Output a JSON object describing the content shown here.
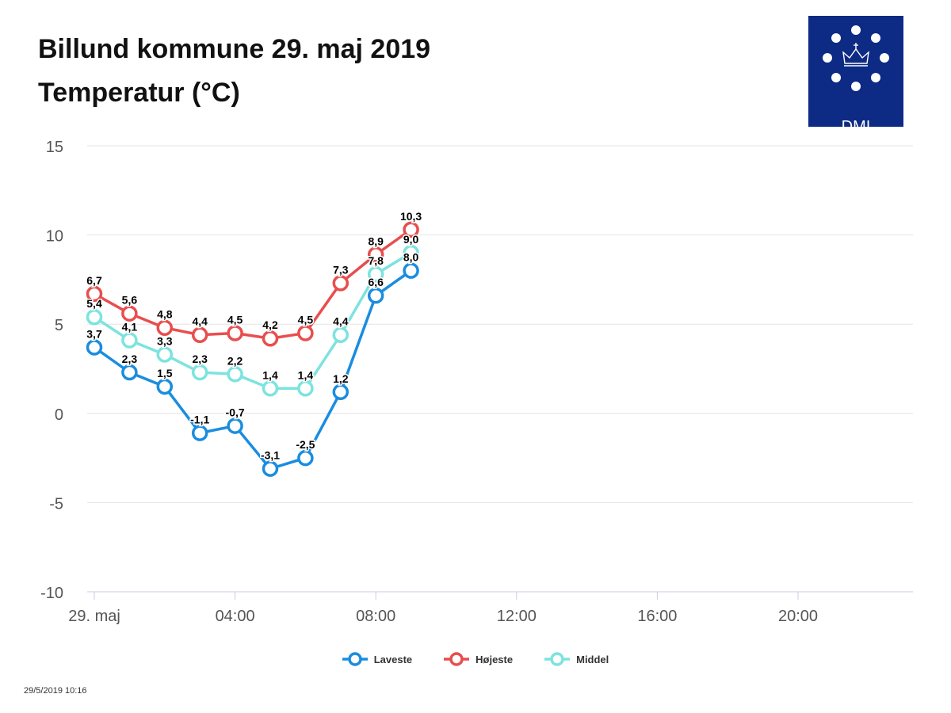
{
  "header": {
    "title_line1": "Billund kommune 29. maj 2019",
    "title_line2": "Temperatur (°C)"
  },
  "logo": {
    "text": "DMI",
    "background": "#0d2a85",
    "icon": "crown-dots-icon"
  },
  "timestamp": "29/5/2019 10:16",
  "chart_data": {
    "type": "line",
    "x": [
      0,
      1,
      2,
      3,
      4,
      5,
      6,
      7,
      8,
      9
    ],
    "xlim": [
      0,
      23
    ],
    "ylim": [
      -10,
      15
    ],
    "yticks": [
      -10,
      -5,
      0,
      5,
      10,
      15
    ],
    "ytick_labels": [
      "-10",
      "-5",
      "0",
      "5",
      "10",
      "15"
    ],
    "xticks": [
      0,
      4,
      8,
      12,
      16,
      20
    ],
    "xtick_labels": [
      "29. maj",
      "04:00",
      "08:00",
      "12:00",
      "16:00",
      "20:00"
    ],
    "grid": true,
    "legend_position": "bottom-center",
    "series": [
      {
        "name": "Laveste",
        "color": "#1a8ddf",
        "values": [
          3.7,
          2.3,
          1.5,
          -1.1,
          -0.7,
          -3.1,
          -2.5,
          1.2,
          6.6,
          8.0
        ],
        "labels": [
          "3,7",
          "2,3",
          "1,5",
          "-1,1",
          "-0,7",
          "-3,1",
          "-2,5",
          "1,2",
          "6,6",
          "8,0"
        ]
      },
      {
        "name": "Højeste",
        "color": "#e84e4e",
        "values": [
          6.7,
          5.6,
          4.8,
          4.4,
          4.5,
          4.2,
          4.5,
          7.3,
          8.9,
          10.3
        ],
        "labels": [
          "6,7",
          "5,6",
          "4,8",
          "4,4",
          "4,5",
          "4,2",
          "4,5",
          "7,3",
          "8,9",
          "10,3"
        ]
      },
      {
        "name": "Middel",
        "color": "#7de3df",
        "values": [
          5.4,
          4.1,
          3.3,
          2.3,
          2.2,
          1.4,
          1.4,
          4.4,
          7.8,
          9.0
        ],
        "labels": [
          "5,4",
          "4,1",
          "3,3",
          "2,3",
          "2,2",
          "1,4",
          "1,4",
          "4,4",
          "7,8",
          "9,0"
        ]
      }
    ]
  }
}
